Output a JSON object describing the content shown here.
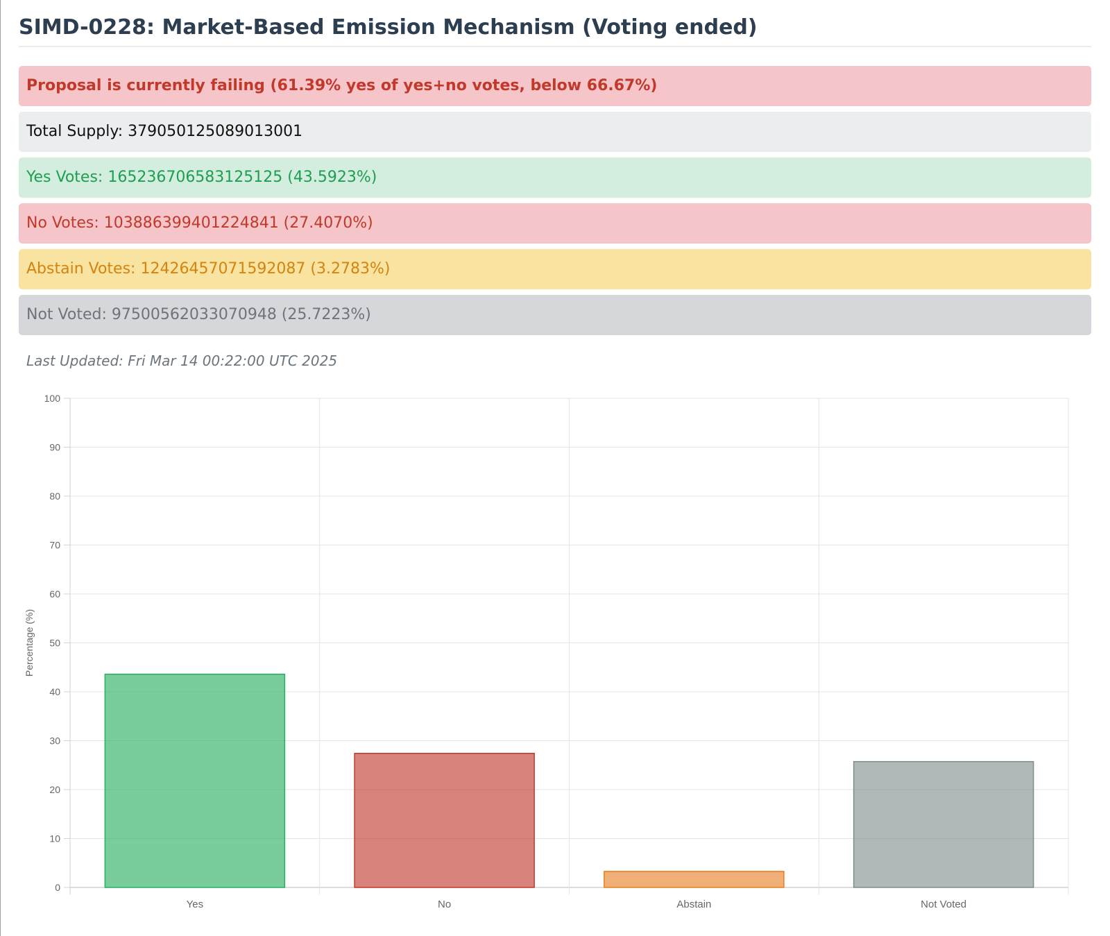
{
  "header": {
    "title": "SIMD-0228: Market-Based Emission Mechanism (Voting ended)"
  },
  "status": {
    "message": "Proposal is currently failing (61.39% yes of yes+no votes, below 66.67%)"
  },
  "summary": {
    "total_supply": "Total Supply: 379050125089013001",
    "yes_votes": "Yes Votes: 165236706583125125 (43.5923%)",
    "no_votes": "No Votes: 103886399401224841 (27.4070%)",
    "abstain_votes": "Abstain Votes: 12426457071592087 (3.2783%)",
    "not_voted": "Not Voted: 97500562033070948 (25.7223%)"
  },
  "last_updated": "Last Updated: Fri Mar 14 00:22:00 UTC 2025",
  "colors": {
    "yes": "#27ae60",
    "no": "#c0392b",
    "abstain": "#e67e22",
    "not_voted": "#7f8c8d"
  },
  "chart_data": {
    "type": "bar",
    "categories": [
      "Yes",
      "No",
      "Abstain",
      "Not Voted"
    ],
    "values": [
      43.5923,
      27.407,
      3.2783,
      25.7223
    ],
    "ylabel": "Percentage (%)",
    "ylim": [
      0,
      100
    ],
    "yticks": [
      0,
      10,
      20,
      30,
      40,
      50,
      60,
      70,
      80,
      90,
      100
    ],
    "grid": true,
    "legend": "none"
  }
}
